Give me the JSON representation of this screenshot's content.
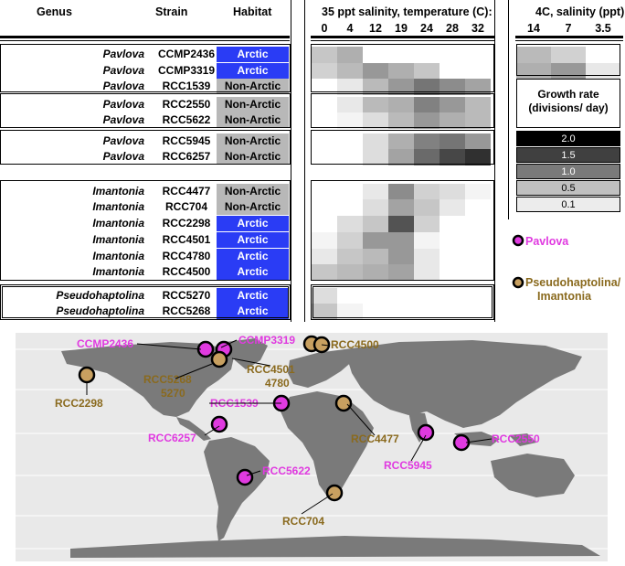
{
  "table_headers": {
    "genus": "Genus",
    "strain": "Strain",
    "habitat": "Habitat",
    "salinity_temp": "35 ppt salinity, temperature (C):",
    "temp_ticks": [
      "0",
      "4",
      "12",
      "19",
      "24",
      "28",
      "32"
    ],
    "cold_salinity": "4C, salinity (ppt):",
    "sal_ticks": [
      "14",
      "7",
      "3.5"
    ]
  },
  "rows": [
    {
      "genus": "Pavlova",
      "strain": "CCMP2436",
      "habitat": "Arctic",
      "temp": [
        0.25,
        0.35,
        0,
        0,
        0,
        0,
        0
      ],
      "sal": [
        0.3,
        0.2,
        0
      ]
    },
    {
      "genus": "Pavlova",
      "strain": "CCMP3319",
      "habitat": "Arctic",
      "temp": [
        0.2,
        0.3,
        0.45,
        0.35,
        0.25,
        0,
        0
      ],
      "sal": [
        0.35,
        0.45,
        0.1
      ]
    },
    {
      "genus": "Pavlova",
      "strain": "RCC1539",
      "habitat": "Non-Arctic",
      "temp": [
        0,
        0.1,
        0.3,
        0.45,
        0.6,
        0.5,
        0.4
      ],
      "sal": null
    },
    {
      "genus": "Pavlova",
      "strain": "RCC2550",
      "habitat": "Non-Arctic",
      "temp": [
        0,
        0.1,
        0.3,
        0.35,
        0.55,
        0.45,
        0.3
      ],
      "sal": null
    },
    {
      "genus": "Pavlova",
      "strain": "RCC5622",
      "habitat": "Non-Arctic",
      "temp": [
        0,
        0.05,
        0.15,
        0.3,
        0.45,
        0.35,
        0.3
      ],
      "sal": null
    },
    {
      "genus": "Pavlova",
      "strain": "RCC5945",
      "habitat": "Non-Arctic",
      "temp": [
        0,
        0,
        0.15,
        0.35,
        0.55,
        0.6,
        0.45
      ],
      "sal": null
    },
    {
      "genus": "Pavlova",
      "strain": "RCC6257",
      "habitat": "Non-Arctic",
      "temp": [
        0,
        0,
        0.15,
        0.4,
        0.65,
        0.8,
        0.9
      ],
      "sal": null
    },
    {
      "genus": "Imantonia",
      "strain": "RCC4477",
      "habitat": "Non-Arctic",
      "temp": [
        0,
        0,
        0.1,
        0.5,
        0.2,
        0.15,
        0.05
      ],
      "sal": null
    },
    {
      "genus": "Imantonia",
      "strain": "RCC704",
      "habitat": "Non-Arctic",
      "temp": [
        0,
        0,
        0.15,
        0.4,
        0.25,
        0.1,
        0
      ],
      "sal": null
    },
    {
      "genus": "Imantonia",
      "strain": "RCC2298",
      "habitat": "Arctic",
      "temp": [
        0,
        0.15,
        0.25,
        0.75,
        0.2,
        0,
        0
      ],
      "sal": null
    },
    {
      "genus": "Imantonia",
      "strain": "RCC4501",
      "habitat": "Arctic",
      "temp": [
        0.05,
        0.2,
        0.45,
        0.45,
        0.05,
        0,
        0
      ],
      "sal": null
    },
    {
      "genus": "Imantonia",
      "strain": "RCC4780",
      "habitat": "Arctic",
      "temp": [
        0.1,
        0.25,
        0.3,
        0.45,
        0.1,
        0,
        0
      ],
      "sal": null
    },
    {
      "genus": "Imantonia",
      "strain": "RCC4500",
      "habitat": "Arctic",
      "temp": [
        0.25,
        0.3,
        0.35,
        0.4,
        0.1,
        0,
        0
      ],
      "sal": null
    },
    {
      "genus": "Pseudohaptolina",
      "strain": "RCC5270",
      "habitat": "Arctic",
      "temp": [
        0.15,
        0,
        0,
        0,
        0,
        0,
        0
      ],
      "sal": null
    },
    {
      "genus": "Pseudohaptolina",
      "strain": "RCC5268",
      "habitat": "Arctic",
      "temp": [
        0.25,
        0.05,
        0,
        0,
        0,
        0,
        0
      ],
      "sal": null
    }
  ],
  "legend": {
    "title_line1": "Growth rate",
    "title_line2": "(divisions/ day)",
    "scale": [
      {
        "label": "2.0",
        "color": "#000000",
        "text_color": "#ffffff"
      },
      {
        "label": "1.5",
        "color": "#404040",
        "text_color": "#ffffff"
      },
      {
        "label": "1.0",
        "color": "#7a7a7a",
        "text_color": "#ffffff"
      },
      {
        "label": "0.5",
        "color": "#c0c0c0",
        "text_color": "#000000"
      },
      {
        "label": "0.1",
        "color": "#ececec",
        "text_color": "#000000"
      }
    ],
    "pavlova_label": "Pavlova",
    "pseudo_label_line1": "Pseudohaptolina/",
    "pseudo_label_line2": "Imantonia",
    "pavlova_color": "#e03ae0",
    "pseudo_color": "#c8a060"
  },
  "map_labels": {
    "ccmp2436": "CCMP2436",
    "ccmp3319": "CCMP3319",
    "rcc4500": "RCC4500",
    "rcc5268": "RCC5268",
    "rcc5270": "5270",
    "rcc4501": "RCC4501",
    "rcc4780": "4780",
    "rcc2298": "RCC2298",
    "rcc1539": "RCC1539",
    "rcc6257": "RCC6257",
    "rcc4477": "RCC4477",
    "rcc5945": "RCC5945",
    "rcc2550": "RCC2550",
    "rcc5622": "RCC5622",
    "rcc704": "RCC704"
  }
}
